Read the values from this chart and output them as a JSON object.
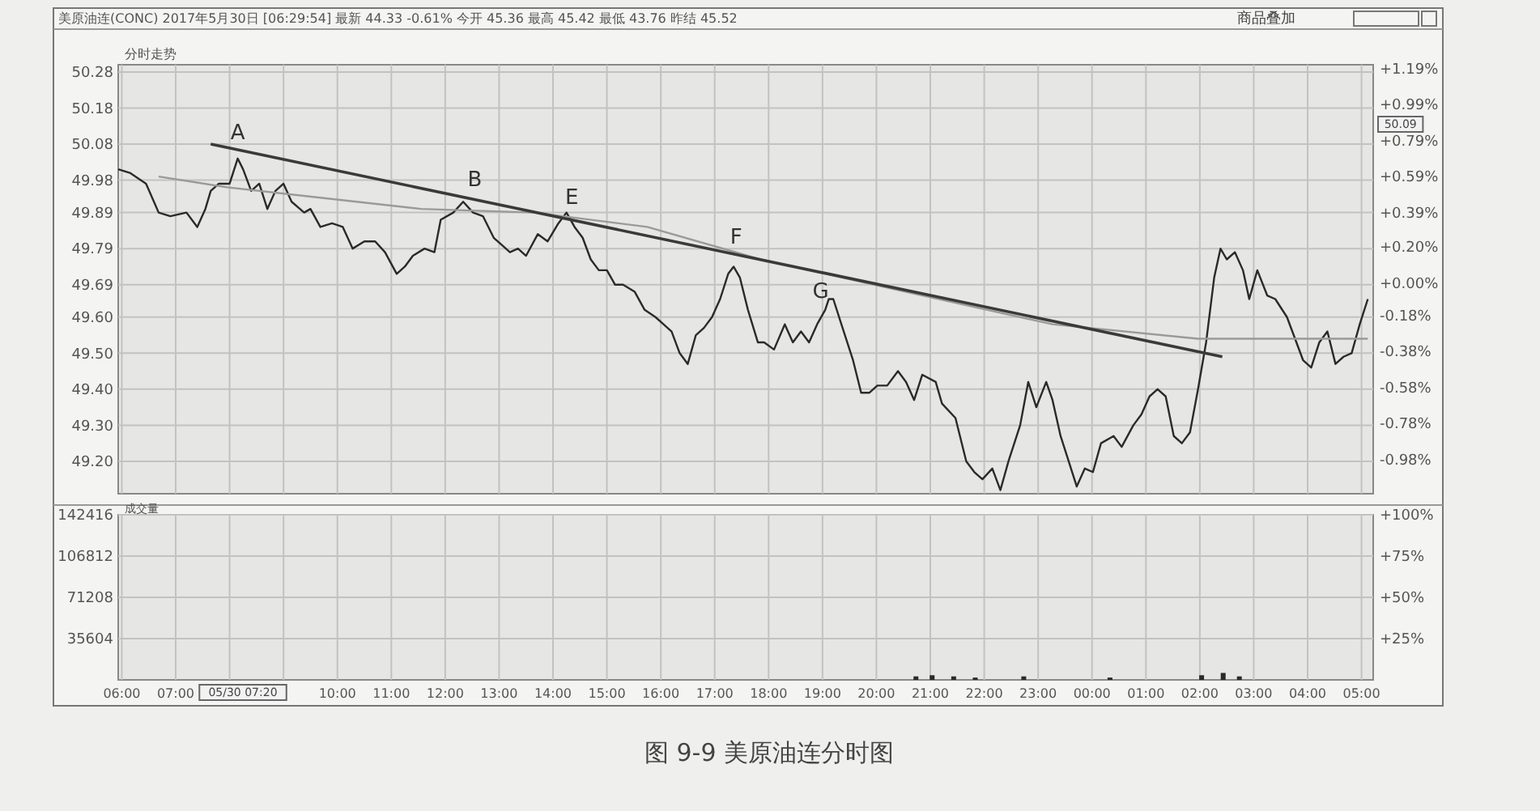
{
  "chart_data": [
    {
      "type": "line",
      "title": "美原油连(CONC) 2017年5月30日   [06:29:54] 最新 44.33 -0.61% 今开 45.36 最高 45.42 最低 43.76 昨结 45.52",
      "subtitle": "分时走势",
      "grid": true,
      "tick_labels": "y",
      "xlim": [
        "2017-05-30T05:56",
        "2017-05-31T05:13"
      ],
      "xticks": [
        {
          "value": "2017-05-30T06:00",
          "label": null
        },
        {
          "value": "2017-05-30T07:00",
          "label": null
        },
        {
          "value": "2017-05-30T08:00",
          "label": null
        },
        {
          "value": "2017-05-30T09:00",
          "label": null
        },
        {
          "value": "2017-05-30T10:00",
          "label": null
        },
        {
          "value": "2017-05-30T11:00",
          "label": null
        },
        {
          "value": "2017-05-30T12:00",
          "label": null
        },
        {
          "value": "2017-05-30T13:00",
          "label": null
        },
        {
          "value": "2017-05-30T14:00",
          "label": null
        },
        {
          "value": "2017-05-30T15:00",
          "label": null
        },
        {
          "value": "2017-05-30T16:00",
          "label": null
        },
        {
          "value": "2017-05-30T17:00",
          "label": null
        },
        {
          "value": "2017-05-30T18:00",
          "label": null
        },
        {
          "value": "2017-05-30T19:00",
          "label": null
        },
        {
          "value": "2017-05-30T20:00",
          "label": null
        },
        {
          "value": "2017-05-30T21:00",
          "label": null
        },
        {
          "value": "2017-05-30T22:00",
          "label": null
        },
        {
          "value": "2017-05-30T23:00",
          "label": null
        },
        {
          "value": "2017-05-31T00:00",
          "label": null
        },
        {
          "value": "2017-05-31T01:00",
          "label": null
        },
        {
          "value": "2017-05-31T02:00",
          "label": null
        },
        {
          "value": "2017-05-31T03:00",
          "label": null
        },
        {
          "value": "2017-05-31T04:00",
          "label": null
        },
        {
          "value": "2017-05-31T05:00",
          "label": null
        }
      ],
      "ylim": [
        49.11,
        50.3
      ],
      "yticks": [
        {
          "value": 50.28,
          "label": "50.28"
        },
        {
          "value": 50.18,
          "label": "50.18"
        },
        {
          "value": 50.08,
          "label": "50.08"
        },
        {
          "value": 49.98,
          "label": "49.98"
        },
        {
          "value": 49.89,
          "label": "49.89"
        },
        {
          "value": 49.79,
          "label": "49.79"
        },
        {
          "value": 49.69,
          "label": "49.69"
        },
        {
          "value": 49.6,
          "label": "49.60"
        },
        {
          "value": 49.5,
          "label": "49.50"
        },
        {
          "value": 49.4,
          "label": "49.40"
        },
        {
          "value": 49.3,
          "label": "49.30"
        },
        {
          "value": 49.2,
          "label": "49.20"
        }
      ],
      "y2lim": [
        -1.17,
        1.21
      ],
      "y2ticks": [
        {
          "value": 1.19,
          "label": "+1.19%"
        },
        {
          "value": 0.99,
          "label": "+0.99%"
        },
        {
          "value": 0.79,
          "label": "+0.79%"
        },
        {
          "value": 0.59,
          "label": "+0.59%"
        },
        {
          "value": 0.39,
          "label": "+0.39%"
        },
        {
          "value": 0.2,
          "label": "+0.20%"
        },
        {
          "value": 0,
          "label": "+0.00%"
        },
        {
          "value": -0.18,
          "label": "-0.18%"
        },
        {
          "value": -0.38,
          "label": "-0.38%"
        },
        {
          "value": -0.58,
          "label": "-0.58%"
        },
        {
          "value": -0.78,
          "label": "-0.78%"
        },
        {
          "value": -0.98,
          "label": "-0.98%"
        }
      ],
      "series": [
        {
          "color": "#2a2a2a",
          "x": [
            "2017-05-30T05:56",
            "2017-05-30T06:09",
            "2017-05-30T06:27",
            "2017-05-30T06:41",
            "2017-05-30T06:54",
            "2017-05-30T07:12",
            "2017-05-30T07:24",
            "2017-05-30T07:33",
            "2017-05-30T07:39",
            "2017-05-30T07:48",
            "2017-05-30T08:00",
            "2017-05-30T08:09",
            "2017-05-30T08:15",
            "2017-05-30T08:24",
            "2017-05-30T08:33",
            "2017-05-30T08:42",
            "2017-05-30T08:51",
            "2017-05-30T09:00",
            "2017-05-30T09:09",
            "2017-05-30T09:23",
            "2017-05-30T09:30",
            "2017-05-30T09:41",
            "2017-05-30T09:54",
            "2017-05-30T10:06",
            "2017-05-30T10:17",
            "2017-05-30T10:30",
            "2017-05-30T10:42",
            "2017-05-30T10:53",
            "2017-05-30T11:06",
            "2017-05-30T11:15",
            "2017-05-30T11:24",
            "2017-05-30T11:37",
            "2017-05-30T11:48",
            "2017-05-30T11:55",
            "2017-05-30T12:09",
            "2017-05-30T12:20",
            "2017-05-30T12:31",
            "2017-05-30T12:42",
            "2017-05-30T12:54",
            "2017-05-30T13:03",
            "2017-05-30T13:12",
            "2017-05-30T13:21",
            "2017-05-30T13:30",
            "2017-05-30T13:43",
            "2017-05-30T13:54",
            "2017-05-30T14:06",
            "2017-05-30T14:15",
            "2017-05-30T14:24",
            "2017-05-30T14:33",
            "2017-05-30T14:42",
            "2017-05-30T14:51",
            "2017-05-30T15:00",
            "2017-05-30T15:09",
            "2017-05-30T15:18",
            "2017-05-30T15:31",
            "2017-05-30T15:42",
            "2017-05-30T15:54",
            "2017-05-30T16:03",
            "2017-05-30T16:12",
            "2017-05-30T16:21",
            "2017-05-30T16:30",
            "2017-05-30T16:39",
            "2017-05-30T16:48",
            "2017-05-30T16:57",
            "2017-05-30T17:06",
            "2017-05-30T17:15",
            "2017-05-30T17:21",
            "2017-05-30T17:28",
            "2017-05-30T17:37",
            "2017-05-30T17:48",
            "2017-05-30T17:55",
            "2017-05-30T18:06",
            "2017-05-30T18:18",
            "2017-05-30T18:27",
            "2017-05-30T18:36",
            "2017-05-30T18:45",
            "2017-05-30T18:54",
            "2017-05-30T19:03",
            "2017-05-30T19:07",
            "2017-05-30T19:12",
            "2017-05-30T19:21",
            "2017-05-30T19:34",
            "2017-05-30T19:43",
            "2017-05-30T19:52",
            "2017-05-30T20:01",
            "2017-05-30T20:12",
            "2017-05-30T20:24",
            "2017-05-30T20:33",
            "2017-05-30T20:42",
            "2017-05-30T20:51",
            "2017-05-30T21:06",
            "2017-05-30T21:13",
            "2017-05-30T21:28",
            "2017-05-30T21:40",
            "2017-05-30T21:49",
            "2017-05-30T21:58",
            "2017-05-30T22:09",
            "2017-05-30T22:18",
            "2017-05-30T22:27",
            "2017-05-30T22:40",
            "2017-05-30T22:49",
            "2017-05-30T22:58",
            "2017-05-30T23:09",
            "2017-05-30T23:16",
            "2017-05-30T23:25",
            "2017-05-30T23:34",
            "2017-05-30T23:43",
            "2017-05-30T23:52",
            "2017-05-31T00:01",
            "2017-05-31T00:10",
            "2017-05-31T00:24",
            "2017-05-31T00:33",
            "2017-05-31T00:46",
            "2017-05-31T00:55",
            "2017-05-31T01:04",
            "2017-05-31T01:13",
            "2017-05-31T01:22",
            "2017-05-31T01:31",
            "2017-05-31T01:40",
            "2017-05-31T01:49",
            "2017-05-31T01:58",
            "2017-05-31T02:07",
            "2017-05-31T02:16",
            "2017-05-31T02:23",
            "2017-05-31T02:30",
            "2017-05-31T02:39",
            "2017-05-31T02:48",
            "2017-05-31T02:55",
            "2017-05-31T03:04",
            "2017-05-31T03:15",
            "2017-05-31T03:24",
            "2017-05-31T03:37",
            "2017-05-31T03:55",
            "2017-05-31T04:04",
            "2017-05-31T04:13",
            "2017-05-31T04:22",
            "2017-05-31T04:31",
            "2017-05-31T04:40",
            "2017-05-31T04:49",
            "2017-05-31T04:58",
            "2017-05-31T05:07"
          ],
          "values": [
            50.01,
            50.0,
            49.97,
            49.89,
            49.88,
            49.89,
            49.85,
            49.9,
            49.95,
            49.97,
            49.97,
            50.04,
            50.01,
            49.95,
            49.97,
            49.9,
            49.95,
            49.97,
            49.92,
            49.89,
            49.9,
            49.85,
            49.86,
            49.85,
            49.79,
            49.81,
            49.81,
            49.78,
            49.72,
            49.74,
            49.77,
            49.79,
            49.78,
            49.87,
            49.89,
            49.92,
            49.89,
            49.88,
            49.82,
            49.8,
            49.78,
            49.79,
            49.77,
            49.83,
            49.81,
            49.86,
            49.89,
            49.85,
            49.82,
            49.76,
            49.73,
            49.73,
            49.69,
            49.69,
            49.67,
            49.62,
            49.6,
            49.58,
            49.56,
            49.5,
            49.47,
            49.55,
            49.57,
            49.6,
            49.65,
            49.72,
            49.74,
            49.71,
            49.62,
            49.53,
            49.53,
            49.51,
            49.58,
            49.53,
            49.56,
            49.53,
            49.58,
            49.62,
            49.65,
            49.65,
            49.58,
            49.48,
            49.39,
            49.39,
            49.41,
            49.41,
            49.45,
            49.42,
            49.37,
            49.44,
            49.42,
            49.36,
            49.32,
            49.2,
            49.17,
            49.15,
            49.18,
            49.12,
            49.2,
            49.3,
            49.42,
            49.35,
            49.42,
            49.37,
            49.27,
            49.2,
            49.13,
            49.18,
            49.17,
            49.25,
            49.27,
            49.24,
            49.3,
            49.33,
            49.38,
            49.4,
            49.38,
            49.27,
            49.25,
            49.28,
            49.4,
            49.53,
            49.71,
            49.79,
            49.76,
            49.78,
            49.73,
            49.65,
            49.73,
            49.66,
            49.65,
            49.6,
            49.48,
            49.46,
            49.53,
            49.56,
            49.47,
            49.49,
            49.5,
            49.58,
            49.65
          ]
        },
        {
          "color": "#9a9a9a",
          "x": [
            "2017-05-30T06:41",
            "2017-05-30T07:57",
            "2017-05-30T09:45",
            "2017-05-30T11:33",
            "2017-05-30T13:39",
            "2017-05-30T15:45",
            "2017-05-30T17:51",
            "2017-05-30T20:33",
            "2017-05-30T23:16",
            "2017-05-31T01:58",
            "2017-05-31T05:07"
          ],
          "values": [
            49.99,
            49.96,
            49.93,
            49.9,
            49.89,
            49.85,
            49.76,
            49.67,
            49.58,
            49.54,
            49.54
          ]
        },
        {
          "color": "#3a3a3a",
          "x": [
            "2017-05-30T07:39",
            "2017-05-31T02:25"
          ],
          "values": [
            50.08,
            49.49
          ]
        }
      ],
      "annotations": [
        {
          "text": "A",
          "x": "2017-05-30T08:09",
          "y": 50.08
        },
        {
          "text": "B",
          "x": "2017-05-30T12:33",
          "y": 49.95
        },
        {
          "text": "E",
          "x": "2017-05-30T14:21",
          "y": 49.9
        },
        {
          "text": "F",
          "x": "2017-05-30T17:24",
          "y": 49.79
        },
        {
          "text": "G",
          "x": "2017-05-30T18:58",
          "y": 49.64
        },
        "50.09",
        "商品叠加"
      ]
    },
    {
      "type": "bar",
      "title": "成交量",
      "grid": true,
      "xlim": [
        "2017-05-30T05:56",
        "2017-05-31T05:13"
      ],
      "xticks": [
        {
          "value": "2017-05-30T06:00",
          "label": "06:00"
        },
        {
          "value": "2017-05-30T07:00",
          "label": "07:00"
        },
        {
          "value": "2017-05-30T08:00",
          "label": null
        },
        {
          "value": "2017-05-30T09:00",
          "label": null
        },
        {
          "value": "2017-05-30T10:00",
          "label": "10:00"
        },
        {
          "value": "2017-05-30T11:00",
          "label": "11:00"
        },
        {
          "value": "2017-05-30T12:00",
          "label": "12:00"
        },
        {
          "value": "2017-05-30T13:00",
          "label": "13:00"
        },
        {
          "value": "2017-05-30T14:00",
          "label": "14:00"
        },
        {
          "value": "2017-05-30T15:00",
          "label": "15:00"
        },
        {
          "value": "2017-05-30T16:00",
          "label": "16:00"
        },
        {
          "value": "2017-05-30T17:00",
          "label": "17:00"
        },
        {
          "value": "2017-05-30T18:00",
          "label": "18:00"
        },
        {
          "value": "2017-05-30T19:00",
          "label": "19:00"
        },
        {
          "value": "2017-05-30T20:00",
          "label": "20:00"
        },
        {
          "value": "2017-05-30T21:00",
          "label": "21:00"
        },
        {
          "value": "2017-05-30T22:00",
          "label": "22:00"
        },
        {
          "value": "2017-05-30T23:00",
          "label": "23:00"
        },
        {
          "value": "2017-05-31T00:00",
          "label": "00:00"
        },
        {
          "value": "2017-05-31T01:00",
          "label": "01:00"
        },
        {
          "value": "2017-05-31T02:00",
          "label": "02:00"
        },
        {
          "value": "2017-05-31T03:00",
          "label": "03:00"
        },
        {
          "value": "2017-05-31T04:00",
          "label": "04:00"
        },
        {
          "value": "2017-05-31T05:00",
          "label": "05:00"
        }
      ],
      "ylim": [
        0,
        142416
      ],
      "yticks": [
        35604,
        71208,
        106812,
        142416
      ],
      "y2lim": [
        0,
        100
      ],
      "y2ticks": [
        {
          "value": 25,
          "label": "+25%"
        },
        {
          "value": 50,
          "label": "+50%"
        },
        {
          "value": 75,
          "label": "+75%"
        },
        {
          "value": 100,
          "label": "+100%"
        }
      ],
      "series": [
        {
          "color": "#2a2a2a",
          "x": [
            "2017-05-30T20:44",
            "2017-05-30T21:02",
            "2017-05-30T21:26",
            "2017-05-30T21:50",
            "2017-05-30T22:44",
            "2017-05-31T00:20",
            "2017-05-31T02:02",
            "2017-05-31T02:26",
            "2017-05-31T02:44"
          ],
          "values": [
            3000,
            4000,
            3000,
            2000,
            3000,
            2000,
            4000,
            6000,
            3000
          ]
        }
      ],
      "annotations": [
        "05/30 07:20",
        "图 9-9   美原油连分时图"
      ]
    }
  ]
}
